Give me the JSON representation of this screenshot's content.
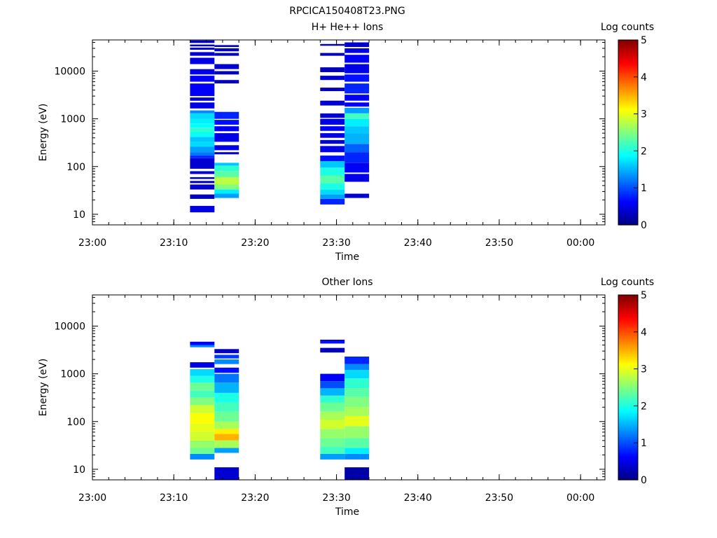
{
  "page_title": "RPCICA150408T23.PNG",
  "colorbar": {
    "label": "Log counts",
    "min": 0,
    "max": 5,
    "ticks": [
      "0",
      "1",
      "2",
      "3",
      "4",
      "5"
    ]
  },
  "chart_data": [
    {
      "type": "heatmap",
      "title": "H+ He++ Ions",
      "xlabel": "Time",
      "ylabel": "Energy (eV)",
      "x_ticks": [
        "23:00",
        "23:10",
        "23:20",
        "23:30",
        "23:40",
        "23:50",
        "00:00"
      ],
      "y_ticks": [
        "10",
        "100",
        "1000",
        "10000"
      ],
      "ylim": [
        6,
        45000
      ],
      "y_scale": "log",
      "xlim": [
        "23:00",
        "00:03"
      ],
      "columns": [
        {
          "t_start": "23:12",
          "t_end": "23:15",
          "cells": [
            [
              11,
              15,
              0.5
            ],
            [
              21,
              26,
              0.3
            ],
            [
              33,
              42,
              0.4
            ],
            [
              45,
              50,
              0.3
            ],
            [
              55,
              60,
              0.3
            ],
            [
              70,
              80,
              0.4
            ],
            [
              90,
              150,
              0.4
            ],
            [
              150,
              170,
              0.8
            ],
            [
              170,
              200,
              1.2
            ],
            [
              200,
              260,
              1.4
            ],
            [
              260,
              330,
              1.7
            ],
            [
              330,
              420,
              1.6
            ],
            [
              420,
              520,
              1.9
            ],
            [
              520,
              650,
              2.1
            ],
            [
              650,
              800,
              1.9
            ],
            [
              800,
              1000,
              1.8
            ],
            [
              1000,
              1300,
              1.7
            ],
            [
              1300,
              1500,
              1.3
            ],
            [
              1650,
              2200,
              0.5
            ],
            [
              2400,
              2800,
              0.4
            ],
            [
              3000,
              5500,
              0.6
            ],
            [
              6000,
              8000,
              0.6
            ],
            [
              8500,
              11000,
              0.5
            ],
            [
              14000,
              19000,
              0.5
            ],
            [
              21000,
              25000,
              0.4
            ],
            [
              28000,
              31000,
              0.4
            ],
            [
              33000,
              36000,
              0.3
            ],
            [
              39000,
              44000,
              0.4
            ]
          ]
        },
        {
          "t_start": "23:15",
          "t_end": "23:18",
          "cells": [
            [
              22,
              27,
              1.4
            ],
            [
              27,
              33,
              1.8
            ],
            [
              33,
              42,
              2.5
            ],
            [
              42,
              60,
              2.8
            ],
            [
              60,
              80,
              2.3
            ],
            [
              80,
              105,
              2.1
            ],
            [
              105,
              120,
              1.6
            ],
            [
              180,
              200,
              0.4
            ],
            [
              220,
              280,
              0.5
            ],
            [
              330,
              500,
              0.5
            ],
            [
              550,
              700,
              0.6
            ],
            [
              750,
              950,
              0.7
            ],
            [
              1000,
              1400,
              0.8
            ],
            [
              5500,
              6500,
              0.3
            ],
            [
              8500,
              10000,
              0.3
            ],
            [
              11000,
              14000,
              0.4
            ],
            [
              21000,
              24000,
              0.3
            ],
            [
              26000,
              30000,
              0.4
            ],
            [
              32000,
              35000,
              0.3
            ]
          ]
        },
        {
          "t_start": "23:28",
          "t_end": "23:31",
          "cells": [
            [
              16,
              21,
              0.8
            ],
            [
              21,
              26,
              1.4
            ],
            [
              26,
              33,
              1.7
            ],
            [
              33,
              45,
              2.0
            ],
            [
              45,
              65,
              2.3
            ],
            [
              65,
              95,
              2.0
            ],
            [
              95,
              130,
              1.6
            ],
            [
              130,
              170,
              0.7
            ],
            [
              200,
              270,
              0.5
            ],
            [
              300,
              360,
              0.4
            ],
            [
              400,
              500,
              0.5
            ],
            [
              560,
              700,
              0.6
            ],
            [
              750,
              1000,
              0.5
            ],
            [
              1050,
              1300,
              0.4
            ],
            [
              1900,
              2400,
              0.4
            ],
            [
              3800,
              4500,
              0.3
            ],
            [
              6500,
              8000,
              0.4
            ],
            [
              9500,
              12000,
              0.3
            ],
            [
              21000,
              24000,
              0.3
            ],
            [
              34000,
              37000,
              0.3
            ]
          ]
        },
        {
          "t_start": "23:31",
          "t_end": "23:34",
          "cells": [
            [
              22,
              27,
              0.4
            ],
            [
              48,
              70,
              0.5
            ],
            [
              75,
              120,
              0.6
            ],
            [
              120,
              200,
              0.8
            ],
            [
              200,
              300,
              1.1
            ],
            [
              300,
              500,
              1.5
            ],
            [
              500,
              700,
              1.6
            ],
            [
              700,
              1000,
              1.8
            ],
            [
              1000,
              1300,
              2.2
            ],
            [
              1300,
              1700,
              1.4
            ],
            [
              1800,
              2200,
              0.6
            ],
            [
              2400,
              3200,
              0.6
            ],
            [
              3400,
              5500,
              0.8
            ],
            [
              6000,
              8500,
              0.7
            ],
            [
              9000,
              14000,
              0.5
            ],
            [
              15000,
              22000,
              0.6
            ],
            [
              24000,
              30000,
              0.5
            ],
            [
              32000,
              40000,
              0.4
            ]
          ]
        }
      ]
    },
    {
      "type": "heatmap",
      "title": "Other Ions",
      "xlabel": "Time",
      "ylabel": "Energy (eV)",
      "x_ticks": [
        "23:00",
        "23:10",
        "23:20",
        "23:30",
        "23:40",
        "23:50",
        "00:00"
      ],
      "y_ticks": [
        "10",
        "100",
        "1000",
        "10000"
      ],
      "ylim": [
        6,
        45000
      ],
      "y_scale": "log",
      "xlim": [
        "23:00",
        "00:03"
      ],
      "columns": [
        {
          "t_start": "23:12",
          "t_end": "23:15",
          "cells": [
            [
              16,
              21,
              1.3
            ],
            [
              21,
              28,
              2.4
            ],
            [
              28,
              40,
              2.6
            ],
            [
              40,
              60,
              2.9
            ],
            [
              60,
              90,
              3.0
            ],
            [
              90,
              150,
              3.1
            ],
            [
              150,
              220,
              2.9
            ],
            [
              220,
              320,
              2.5
            ],
            [
              320,
              450,
              2.2
            ],
            [
              450,
              650,
              2.4
            ],
            [
              650,
              900,
              2.0
            ],
            [
              900,
              1250,
              1.7
            ],
            [
              1350,
              1750,
              0.5
            ],
            [
              3600,
              4000,
              1.3
            ],
            [
              4000,
              4700,
              0.6
            ]
          ]
        },
        {
          "t_start": "23:15",
          "t_end": "23:18",
          "cells": [
            [
              6,
              11,
              0.4
            ],
            [
              22,
              28,
              1.4
            ],
            [
              28,
              40,
              2.7
            ],
            [
              40,
              55,
              3.5
            ],
            [
              55,
              70,
              3.2
            ],
            [
              70,
              100,
              2.7
            ],
            [
              100,
              160,
              2.4
            ],
            [
              160,
              250,
              2.2
            ],
            [
              250,
              400,
              2.0
            ],
            [
              400,
              650,
              1.5
            ],
            [
              650,
              1000,
              1.2
            ],
            [
              1050,
              1350,
              0.7
            ],
            [
              1600,
              2000,
              1.3
            ],
            [
              2100,
              2500,
              0.9
            ],
            [
              2700,
              3300,
              0.3
            ]
          ]
        },
        {
          "t_start": "23:28",
          "t_end": "23:31",
          "cells": [
            [
              16,
              21,
              1.4
            ],
            [
              21,
              30,
              2.2
            ],
            [
              30,
              45,
              2.4
            ],
            [
              45,
              70,
              2.6
            ],
            [
              70,
              110,
              2.9
            ],
            [
              110,
              160,
              2.7
            ],
            [
              160,
              250,
              2.4
            ],
            [
              250,
              350,
              2.1
            ],
            [
              350,
              500,
              1.5
            ],
            [
              500,
              700,
              1.0
            ],
            [
              700,
              1000,
              0.6
            ],
            [
              2800,
              3500,
              0.3
            ],
            [
              4300,
              4700,
              0.7
            ],
            [
              4700,
              5200,
              0.5
            ]
          ]
        },
        {
          "t_start": "23:31",
          "t_end": "23:34",
          "cells": [
            [
              6,
              11,
              0.2
            ],
            [
              16,
              21,
              1.3
            ],
            [
              21,
              28,
              1.8
            ],
            [
              28,
              45,
              2.3
            ],
            [
              45,
              80,
              2.6
            ],
            [
              80,
              130,
              3.0
            ],
            [
              130,
              200,
              2.7
            ],
            [
              200,
              330,
              2.5
            ],
            [
              330,
              500,
              2.3
            ],
            [
              500,
              800,
              2.1
            ],
            [
              800,
              1200,
              1.7
            ],
            [
              1200,
              1600,
              1.3
            ],
            [
              1600,
              2300,
              0.8
            ]
          ]
        }
      ]
    }
  ]
}
